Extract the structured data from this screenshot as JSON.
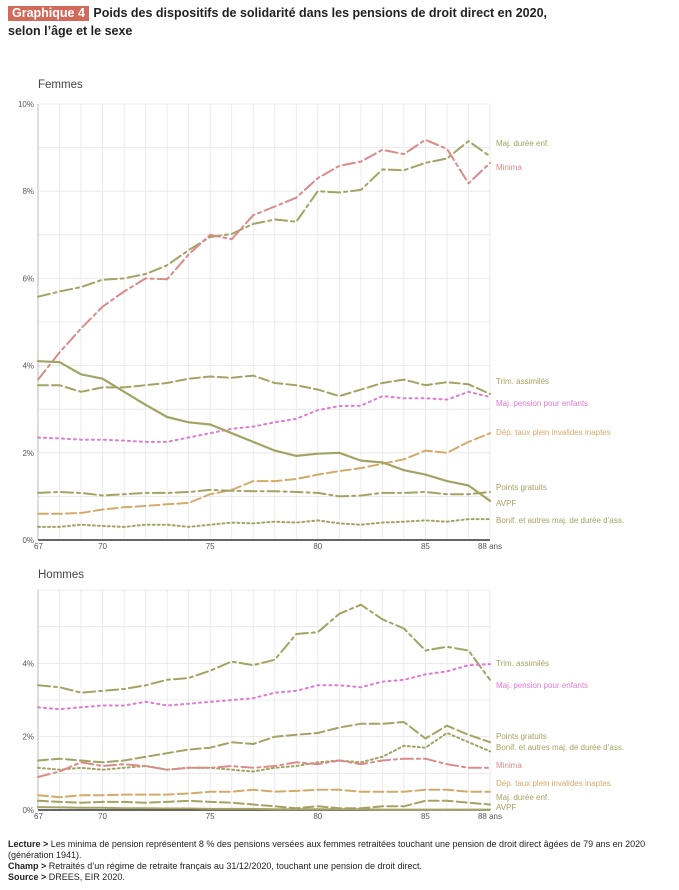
{
  "title": {
    "tag": "Graphique 4",
    "line1": "Poids des dispositifs de solidarité dans les pensions de droit direct en 2020,",
    "line2": "selon l’âge et le sexe"
  },
  "notes": {
    "lecture_label": "Lecture >",
    "lecture_text": "Les minima de pension représentent 8 % des pensions versées aux femmes retraitées touchant une pension de droit direct âgées de 79 ans en 2020 (génération 1941).",
    "champ_label": "Champ >",
    "champ_text": "Retraités d’un régime de retraite français au 31/12/2020, touchant une pension de droit direct.",
    "source_label": "Source >",
    "source_text": "DREES, EIR 2020."
  },
  "colors": {
    "olive": "#a3a364",
    "pink": "#dc8a8a",
    "magenta": "#e07ad2",
    "orange": "#d4aa6b",
    "grid": "#e6e6e6",
    "axis": "#333333"
  },
  "chart_data": [
    {
      "type": "line",
      "title": "Femmes",
      "ylabel": "",
      "xlim": [
        67,
        88
      ],
      "ylim": [
        0,
        10
      ],
      "x_ticks": [
        "67",
        "70",
        "75",
        "80",
        "85",
        "88 ans"
      ],
      "x_tick_values": [
        67,
        70,
        75,
        80,
        85,
        88
      ],
      "y_ticks": [
        "0%",
        "2%",
        "4%",
        "6%",
        "8%",
        "10%"
      ],
      "y_tick_values": [
        0,
        2,
        4,
        6,
        8,
        10
      ],
      "grid": true,
      "x": [
        67,
        68,
        69,
        70,
        71,
        72,
        73,
        74,
        75,
        76,
        77,
        78,
        79,
        80,
        81,
        82,
        83,
        84,
        85,
        86,
        87,
        88
      ],
      "series": [
        {
          "name": "Maj. durée enf.",
          "color": "#a3a364",
          "dash": "12,4,3,4",
          "width": 2,
          "values": [
            5.58,
            5.7,
            5.8,
            5.97,
            6.0,
            6.1,
            6.3,
            6.65,
            6.95,
            7.02,
            7.25,
            7.35,
            7.3,
            8.0,
            7.97,
            8.03,
            8.5,
            8.48,
            8.65,
            8.75,
            9.15,
            8.8
          ]
        },
        {
          "name": "Minima",
          "color": "#dc8a8a",
          "dash": "12,4,3,4",
          "width": 2,
          "values": [
            3.68,
            4.3,
            4.85,
            5.35,
            5.7,
            6.0,
            5.98,
            6.55,
            7.0,
            6.9,
            7.45,
            7.65,
            7.85,
            8.3,
            8.58,
            8.68,
            8.95,
            8.85,
            9.18,
            8.97,
            8.18,
            8.65
          ]
        },
        {
          "name": "Trim. assimilés",
          "color": "#a3a364",
          "dash": "10,4",
          "width": 2,
          "values": [
            3.55,
            3.55,
            3.4,
            3.5,
            3.5,
            3.55,
            3.6,
            3.7,
            3.75,
            3.72,
            3.77,
            3.6,
            3.55,
            3.45,
            3.3,
            3.45,
            3.6,
            3.68,
            3.55,
            3.62,
            3.57,
            3.35
          ]
        },
        {
          "name": "Maj. pension pour enfants",
          "color": "#e07ad2",
          "dash": "2,4",
          "width": 2,
          "values": [
            2.35,
            2.33,
            2.3,
            2.3,
            2.28,
            2.25,
            2.25,
            2.35,
            2.45,
            2.55,
            2.6,
            2.7,
            2.78,
            2.98,
            3.07,
            3.08,
            3.3,
            3.25,
            3.25,
            3.22,
            3.4,
            3.28
          ]
        },
        {
          "name": "Dép. taux plein invalides inaptes",
          "color": "#d4aa6b",
          "dash": "10,4",
          "width": 2,
          "values": [
            0.6,
            0.6,
            0.62,
            0.7,
            0.75,
            0.78,
            0.82,
            0.85,
            1.05,
            1.15,
            1.35,
            1.35,
            1.4,
            1.5,
            1.58,
            1.65,
            1.75,
            1.85,
            2.05,
            2.0,
            2.25,
            2.45
          ]
        },
        {
          "name": "Points gratuits",
          "color": "#a3a364",
          "dash": "12,4,3,4",
          "width": 2,
          "values": [
            1.08,
            1.1,
            1.08,
            1.02,
            1.05,
            1.08,
            1.08,
            1.1,
            1.15,
            1.13,
            1.12,
            1.12,
            1.1,
            1.08,
            1.0,
            1.02,
            1.08,
            1.08,
            1.1,
            1.05,
            1.05,
            1.1
          ]
        },
        {
          "name": "AVPF",
          "color": "#a3a364",
          "dash": "",
          "width": 2.2,
          "values": [
            4.1,
            4.08,
            3.8,
            3.7,
            3.4,
            3.1,
            2.82,
            2.7,
            2.65,
            2.45,
            2.25,
            2.05,
            1.93,
            1.98,
            2.0,
            1.82,
            1.78,
            1.6,
            1.5,
            1.35,
            1.25,
            0.9
          ]
        },
        {
          "name": "Bonif. et autres maj. de durée d’ass.",
          "color": "#a3a364",
          "dash": "2,3",
          "width": 2,
          "values": [
            0.3,
            0.3,
            0.35,
            0.32,
            0.3,
            0.35,
            0.35,
            0.3,
            0.35,
            0.4,
            0.38,
            0.42,
            0.4,
            0.45,
            0.38,
            0.35,
            0.4,
            0.42,
            0.45,
            0.42,
            0.48,
            0.48
          ]
        }
      ]
    },
    {
      "type": "line",
      "title": "Hommes",
      "ylabel": "",
      "xlim": [
        67,
        88
      ],
      "ylim": [
        0,
        6
      ],
      "x_ticks": [
        "67",
        "70",
        "75",
        "80",
        "85",
        "88 ans"
      ],
      "x_tick_values": [
        67,
        70,
        75,
        80,
        85,
        88
      ],
      "y_ticks": [
        "0%",
        "2%",
        "4%"
      ],
      "y_tick_values": [
        0,
        2,
        4
      ],
      "grid": true,
      "x": [
        67,
        68,
        69,
        70,
        71,
        72,
        73,
        74,
        75,
        76,
        77,
        78,
        79,
        80,
        81,
        82,
        83,
        84,
        85,
        86,
        87,
        88
      ],
      "series": [
        {
          "name": "Trim. assimilés",
          "color": "#a3a364",
          "dash": "12,4,3,4",
          "width": 2,
          "values": [
            3.4,
            3.35,
            3.2,
            3.25,
            3.3,
            3.4,
            3.55,
            3.6,
            3.8,
            4.05,
            3.95,
            4.1,
            4.8,
            4.85,
            5.35,
            5.6,
            5.2,
            4.95,
            4.35,
            4.45,
            4.35,
            3.55
          ]
        },
        {
          "name": "Maj. pension pour enfants",
          "color": "#e07ad2",
          "dash": "2,4",
          "width": 2,
          "values": [
            2.8,
            2.75,
            2.8,
            2.85,
            2.85,
            2.95,
            2.85,
            2.9,
            2.95,
            3.0,
            3.05,
            3.2,
            3.25,
            3.4,
            3.4,
            3.35,
            3.5,
            3.55,
            3.7,
            3.78,
            3.95,
            3.98
          ]
        },
        {
          "name": "Points gratuits",
          "color": "#a3a364",
          "dash": "10,4",
          "width": 2,
          "values": [
            1.35,
            1.4,
            1.35,
            1.3,
            1.35,
            1.45,
            1.55,
            1.65,
            1.7,
            1.85,
            1.8,
            2.0,
            2.05,
            2.1,
            2.25,
            2.35,
            2.35,
            2.4,
            1.95,
            2.3,
            2.05,
            1.85
          ]
        },
        {
          "name": "Bonif. et autres maj. de durée d’ass.",
          "color": "#a3a364",
          "dash": "2,3",
          "width": 2,
          "values": [
            1.15,
            1.1,
            1.15,
            1.1,
            1.15,
            1.2,
            1.1,
            1.15,
            1.15,
            1.1,
            1.05,
            1.15,
            1.2,
            1.3,
            1.35,
            1.3,
            1.45,
            1.75,
            1.7,
            2.1,
            1.85,
            1.6
          ]
        },
        {
          "name": "Minima",
          "color": "#dc8a8a",
          "dash": "12,4,3,4",
          "width": 2,
          "values": [
            0.9,
            1.05,
            1.3,
            1.2,
            1.25,
            1.2,
            1.1,
            1.15,
            1.15,
            1.2,
            1.15,
            1.2,
            1.3,
            1.25,
            1.35,
            1.25,
            1.35,
            1.4,
            1.4,
            1.25,
            1.15,
            1.15
          ]
        },
        {
          "name": "Dép. taux plein invalides inaptes",
          "color": "#d4aa6b",
          "dash": "10,4",
          "width": 2,
          "values": [
            0.4,
            0.35,
            0.4,
            0.4,
            0.42,
            0.42,
            0.42,
            0.45,
            0.5,
            0.5,
            0.55,
            0.5,
            0.52,
            0.55,
            0.55,
            0.5,
            0.5,
            0.5,
            0.55,
            0.55,
            0.5,
            0.5
          ]
        },
        {
          "name": "Maj. durée enf.",
          "color": "#a3a364",
          "dash": "10,4",
          "width": 2,
          "values": [
            0.25,
            0.22,
            0.2,
            0.22,
            0.22,
            0.2,
            0.22,
            0.25,
            0.22,
            0.2,
            0.15,
            0.1,
            0.05,
            0.1,
            0.05,
            0.05,
            0.1,
            0.1,
            0.25,
            0.25,
            0.2,
            0.15
          ]
        },
        {
          "name": "AVPF",
          "color": "#a3a364",
          "dash": "",
          "width": 2,
          "values": [
            0.08,
            0.07,
            0.06,
            0.06,
            0.05,
            0.05,
            0.04,
            0.04,
            0.03,
            0.03,
            0.03,
            0.02,
            0.02,
            0.02,
            0.02,
            0.02,
            0.01,
            0.01,
            0.01,
            0.01,
            0.01,
            0.01
          ]
        }
      ]
    }
  ]
}
